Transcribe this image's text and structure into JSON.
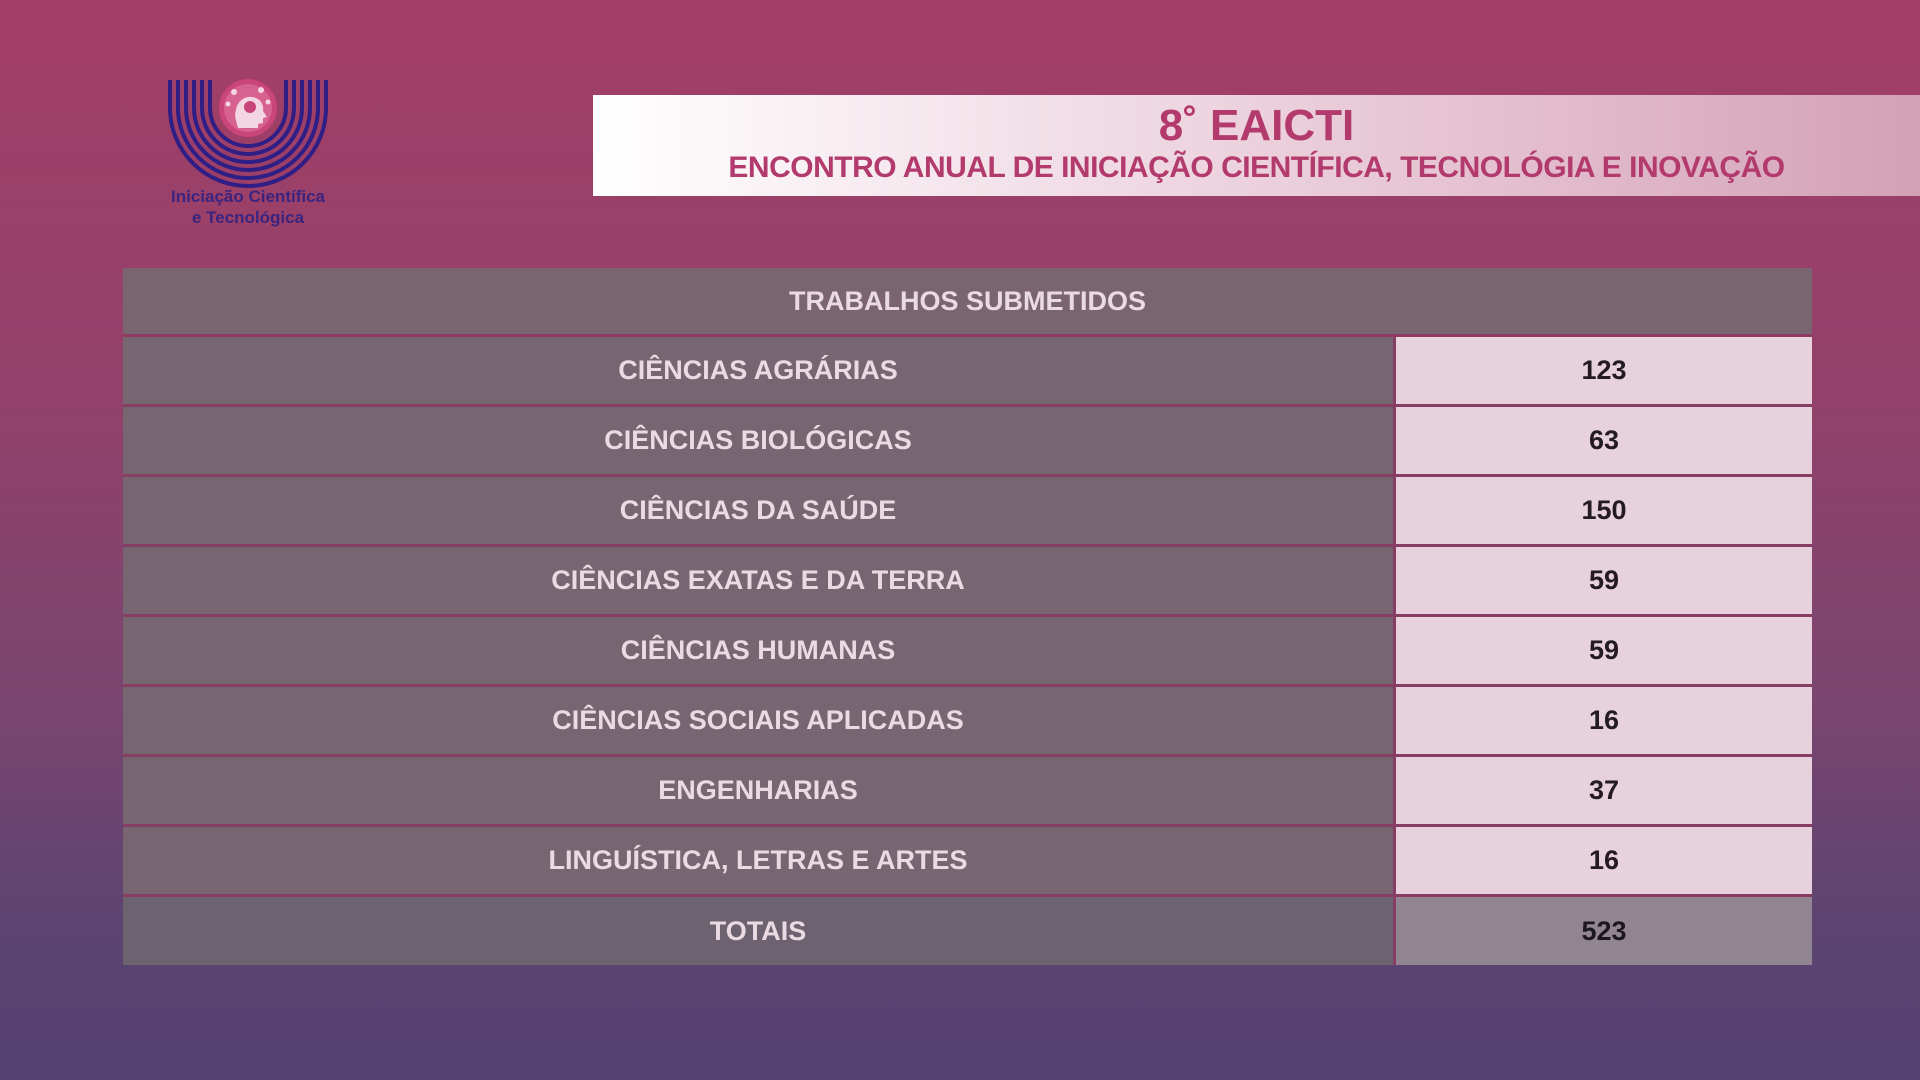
{
  "logo": {
    "line1": "Iniciação Científica",
    "line2": "e Tecnológica",
    "colors": {
      "rings": "#2f1e86",
      "badge": "#c9457a"
    }
  },
  "banner": {
    "title": "8˚ EAICTI",
    "subtitle": "ENCONTRO ANUAL DE INICIAÇÃO CIENTÍFICA, TECNOLÓGIA E INOVAÇÃO"
  },
  "table": {
    "header": "TRABALHOS SUBMETIDOS",
    "rows": [
      {
        "label": "CIÊNCIAS AGRÁRIAS",
        "value": "123"
      },
      {
        "label": "CIÊNCIAS BIOLÓGICAS",
        "value": "63"
      },
      {
        "label": "CIÊNCIAS DA SAÚDE",
        "value": "150"
      },
      {
        "label": "CIÊNCIAS EXATAS E DA TERRA",
        "value": "59"
      },
      {
        "label": "CIÊNCIAS HUMANAS",
        "value": "59"
      },
      {
        "label": "CIÊNCIAS SOCIAIS APLICADAS",
        "value": "16"
      },
      {
        "label": "ENGENHARIAS",
        "value": "37"
      },
      {
        "label": "LINGUÍSTICA, LETRAS E ARTES",
        "value": "16"
      }
    ],
    "total": {
      "label": "TOTAIS",
      "value": "523"
    }
  }
}
